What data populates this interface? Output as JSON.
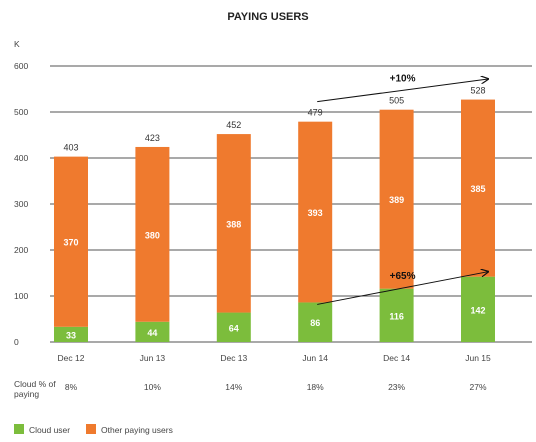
{
  "chart_data": {
    "type": "bar",
    "stacked": true,
    "title": "PAYING USERS",
    "unit_label": "K",
    "ylim": [
      0,
      600
    ],
    "yticks": [
      "0",
      "100",
      "200",
      "300",
      "400",
      "500",
      "600"
    ],
    "ytick_values": [
      0,
      100,
      200,
      300,
      400,
      500,
      600
    ],
    "grid": true,
    "categories": [
      "Dec 12",
      "Jun 13",
      "Dec 13",
      "Jun 14",
      "Dec 14",
      "Jun 15"
    ],
    "series": [
      {
        "name": "Cloud user",
        "color": "#7cbd3c",
        "values": [
          33,
          44,
          64,
          86,
          116,
          142
        ]
      },
      {
        "name": "Other paying users",
        "color": "#ef7a2e",
        "values": [
          370,
          380,
          388,
          393,
          389,
          385
        ]
      }
    ],
    "totals": [
      "403",
      "423",
      "452",
      "479",
      "505",
      "528"
    ],
    "total_values": [
      403,
      423,
      452,
      479,
      505,
      528
    ],
    "annotations": [
      {
        "text": "+10%",
        "from_index": 3,
        "to_index": 5,
        "target": "total"
      },
      {
        "text": "+65%",
        "from_index": 3,
        "to_index": 5,
        "target": "cloud"
      }
    ],
    "extra_row": {
      "label": "Cloud % of paying",
      "values": [
        "8%",
        "10%",
        "14%",
        "18%",
        "23%",
        "27%"
      ]
    },
    "legend": {
      "position": "bottom-left",
      "items": [
        "Cloud user",
        "Other paying users"
      ]
    }
  }
}
